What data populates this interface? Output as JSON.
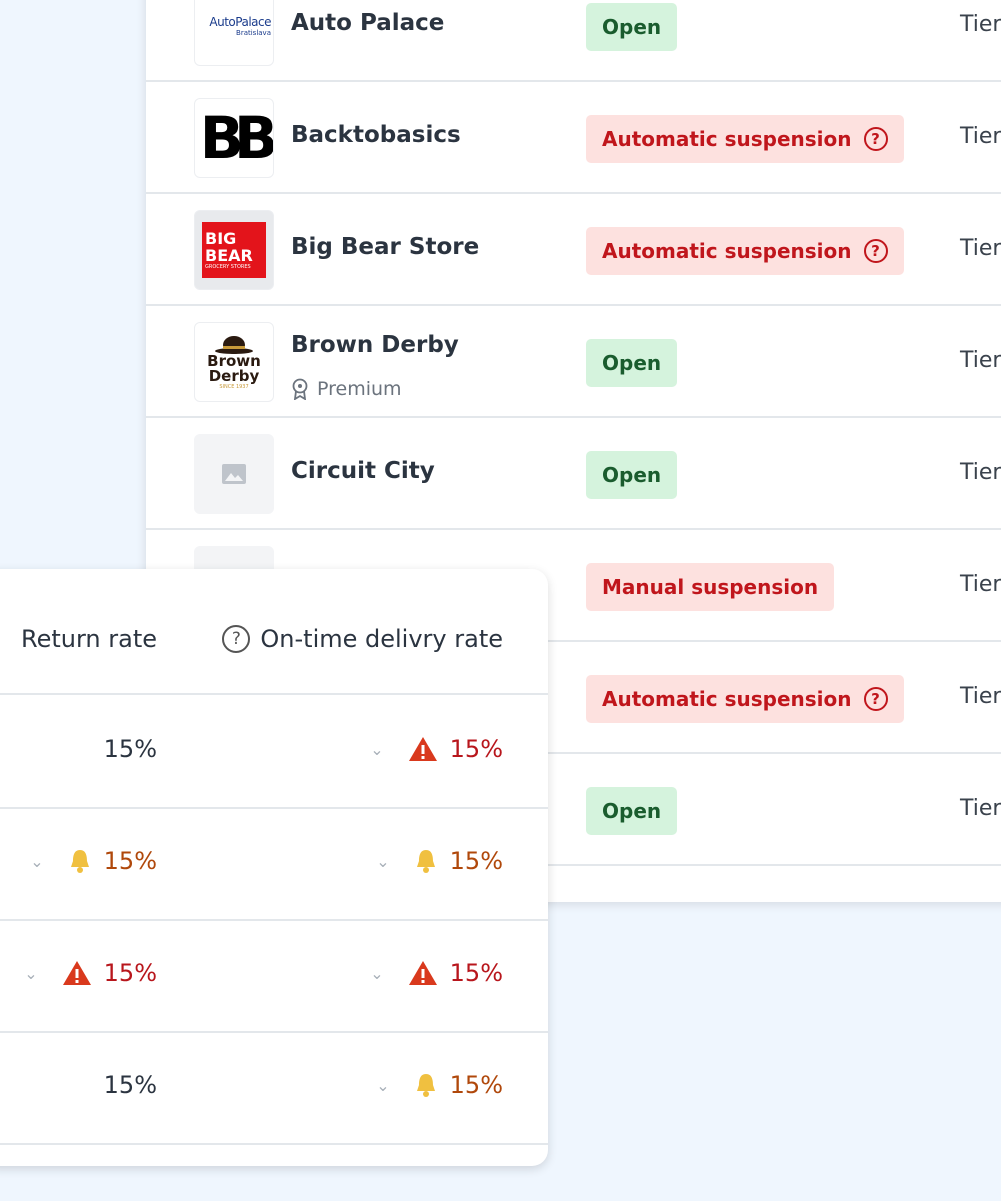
{
  "stores": [
    {
      "name": "Auto Palace",
      "logo": "AutoPalace",
      "logo_sub": "Bratislava",
      "status": "Open",
      "status_type": "open",
      "tier": "Tier"
    },
    {
      "name": "Backtobasics",
      "logo": "BB",
      "status": "Automatic suspension",
      "status_type": "susp",
      "help": "?",
      "tier": "Tier"
    },
    {
      "name": "Big Bear Store",
      "logo": "BIG BEAR",
      "logo_sub": "GROCERY STORES",
      "status": "Automatic suspension",
      "status_type": "susp",
      "help": "?",
      "tier": "Tier"
    },
    {
      "name": "Brown Derby",
      "logo": "Brown Derby",
      "logo_sub": "SINCE 1937",
      "badge": "Premium",
      "status": "Open",
      "status_type": "open",
      "tier": "Tier"
    },
    {
      "name": "Circuit City",
      "logo": "image-placeholder-icon",
      "status": "Open",
      "status_type": "open",
      "tier": "Tier"
    },
    {
      "status": "Manual suspension",
      "status_type": "susp",
      "tier": "Tier"
    },
    {
      "status": "Automatic suspension",
      "status_type": "susp",
      "help": "?",
      "tier": "Tier"
    },
    {
      "status": "Open",
      "status_type": "open",
      "tier": "Tier"
    }
  ],
  "metrics": {
    "headers": {
      "return_rate": "Return rate",
      "ontime": "On-time delivry rate",
      "help": "?"
    },
    "rows": [
      {
        "return": {
          "value": "15%",
          "alert": "none"
        },
        "ontime": {
          "value": "15%",
          "alert": "warning"
        }
      },
      {
        "return": {
          "value": "15%",
          "alert": "bell"
        },
        "ontime": {
          "value": "15%",
          "alert": "bell"
        }
      },
      {
        "return": {
          "value": "15%",
          "alert": "warning"
        },
        "ontime": {
          "value": "15%",
          "alert": "warning"
        }
      },
      {
        "return": {
          "value": "15%",
          "alert": "none"
        },
        "ontime": {
          "value": "15%",
          "alert": "bell"
        }
      }
    ]
  },
  "colors": {
    "background": "#eff6fe",
    "open_bg": "#d5f3dd",
    "open_text": "#1a5c2e",
    "susp_bg": "#fde1df",
    "susp_text": "#c0161c",
    "warning": "#d9391d",
    "bell": "#f0c040"
  }
}
